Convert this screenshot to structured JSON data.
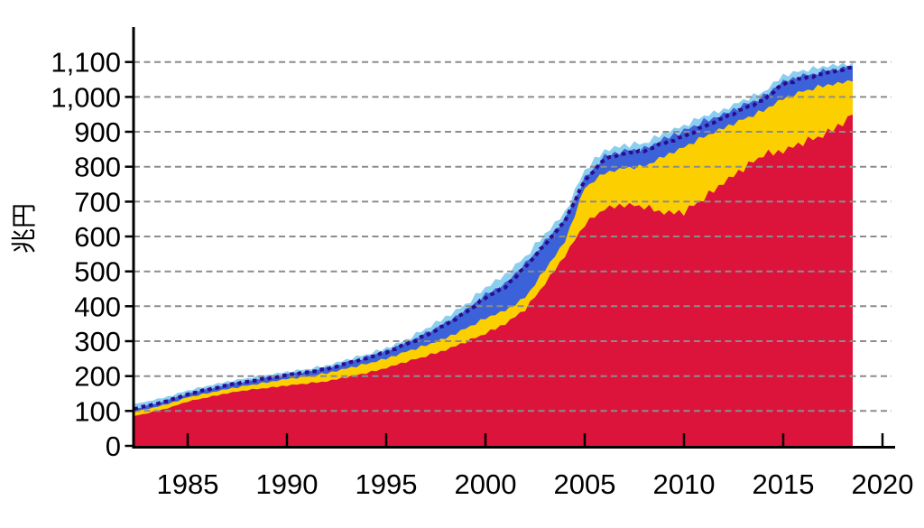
{
  "chart_data": {
    "type": "area",
    "subtype": "stacked_area_with_dotted_line",
    "title": "",
    "ylabel": "兆円",
    "xlabel": "",
    "legend": "none_visible",
    "grid": {
      "horizontal": true,
      "style": "dashed",
      "color": "#8C8C8C",
      "drawn_above_areas": true
    },
    "xlim": [
      1982.3,
      2020.6
    ],
    "ylim": [
      0,
      1200
    ],
    "x_ticks": [
      1985,
      1990,
      1995,
      2000,
      2005,
      2010,
      2015,
      2020
    ],
    "x_tick_labels": [
      "1985",
      "1990",
      "1995",
      "2000",
      "2005",
      "2010",
      "2015",
      "2020"
    ],
    "y_ticks": [
      0,
      100,
      200,
      300,
      400,
      500,
      600,
      700,
      800,
      900,
      1000,
      1100
    ],
    "y_tick_labels": [
      "0",
      "100",
      "200",
      "300",
      "400",
      "500",
      "600",
      "700",
      "800",
      "900",
      "1,000",
      "1,100"
    ],
    "x_years": [
      1982.3,
      1983,
      1984,
      1985,
      1986,
      1987,
      1988,
      1989,
      1990,
      1991,
      1992,
      1993,
      1994,
      1995,
      1996,
      1997,
      1998,
      1999,
      2000,
      2001,
      2002,
      2003,
      2004,
      2005,
      2006,
      2007,
      2008,
      2009,
      2010,
      2011,
      2012,
      2013,
      2014,
      2015,
      2016,
      2017,
      2018,
      2018.5
    ],
    "values_are": "cumulative_stack_tops_trillion_yen",
    "series": [
      {
        "id": "red",
        "name": "bottom-red-area",
        "kind": "stacked-area",
        "color": "#DC143C",
        "values": [
          85,
          94,
          108,
          127,
          139,
          151,
          160,
          166,
          173,
          179,
          185,
          197,
          209,
          223,
          241,
          257,
          275,
          298,
          322,
          350,
          391,
          465,
          545,
          635,
          680,
          691,
          686,
          668,
          670,
          710,
          755,
          795,
          835,
          845,
          870,
          890,
          925,
          950
        ]
      },
      {
        "id": "yellow",
        "name": "second-yellow-area",
        "kind": "stacked-area",
        "color": "#FCD000",
        "values": [
          96,
          106,
          120,
          139,
          151,
          163,
          173,
          182,
          192,
          199,
          208,
          222,
          235,
          250,
          270,
          288,
          309,
          336,
          366,
          388,
          425,
          505,
          585,
          740,
          782,
          796,
          801,
          830,
          856,
          886,
          911,
          936,
          961,
          995,
          1016,
          1032,
          1041,
          1046
        ]
      },
      {
        "id": "blue",
        "name": "third-royalblue-area",
        "kind": "stacked-area",
        "color": "#3B62D9",
        "values": [
          106,
          116,
          131,
          150,
          163,
          176,
          186,
          195,
          205,
          213,
          223,
          239,
          254,
          272,
          295,
          322,
          353,
          388,
          433,
          465,
          521,
          585,
          650,
          766,
          830,
          846,
          851,
          880,
          903,
          930,
          950,
          976,
          1001,
          1044,
          1060,
          1073,
          1083,
          1089
        ]
      },
      {
        "id": "lightblue",
        "name": "top-lightblue-area",
        "kind": "stacked-area",
        "color": "#8CCEF0",
        "values": [
          121,
          128,
          141,
          159,
          172,
          184,
          194,
          203,
          212,
          220,
          230,
          247,
          262,
          280,
          304,
          336,
          369,
          405,
          454,
          490,
          542,
          607,
          668,
          791,
          847,
          862,
          867,
          897,
          917,
          946,
          963,
          991,
          1014,
          1062,
          1076,
          1087,
          1093,
          1097
        ]
      },
      {
        "id": "dotted",
        "name": "dark-indigo-dotted-line",
        "kind": "dotted-line",
        "color": "#2C0B8E",
        "values": [
          105,
          115,
          129,
          148,
          161,
          174,
          184,
          193,
          203,
          211,
          220,
          236,
          251,
          268,
          291,
          316,
          347,
          382,
          425,
          455,
          512,
          577,
          644,
          760,
          822,
          838,
          845,
          868,
          886,
          915,
          940,
          966,
          991,
          1037,
          1053,
          1066,
          1078,
          1085
        ]
      }
    ],
    "seasonal_sawtooth": {
      "period_years": 0.25,
      "pattern": [
        0.5,
        -0.28,
        0.22,
        -0.5
      ],
      "phase": {
        "red": 0,
        "yellow": 2,
        "blue": 1,
        "lightblue": 3,
        "dotted": 2
      },
      "amplitude_p2p": {
        "red": [
          [
            1982.3,
            2
          ],
          [
            1990,
            4
          ],
          [
            1995,
            5
          ],
          [
            2000,
            8
          ],
          [
            2004,
            10
          ],
          [
            2006,
            14
          ],
          [
            2010,
            18
          ],
          [
            2018.5,
            20
          ]
        ],
        "yellow": [
          [
            1982.3,
            3
          ],
          [
            1990,
            5
          ],
          [
            2000,
            8
          ],
          [
            2005,
            10
          ],
          [
            2018.5,
            12
          ]
        ],
        "blue": [
          [
            1982.3,
            3
          ],
          [
            1990,
            6
          ],
          [
            2000,
            12
          ],
          [
            2005,
            14
          ],
          [
            2010,
            16
          ],
          [
            2018.5,
            14
          ]
        ],
        "lightblue": [
          [
            1982.3,
            4
          ],
          [
            1990,
            6
          ],
          [
            2000,
            14
          ],
          [
            2006,
            16
          ],
          [
            2010,
            14
          ],
          [
            2018.5,
            12
          ]
        ],
        "dotted": [
          [
            1982.3,
            1.5
          ],
          [
            2000,
            5
          ],
          [
            2018.5,
            6
          ]
        ]
      }
    },
    "axis_color": "#000000",
    "background_color": "#FFFFFF"
  }
}
